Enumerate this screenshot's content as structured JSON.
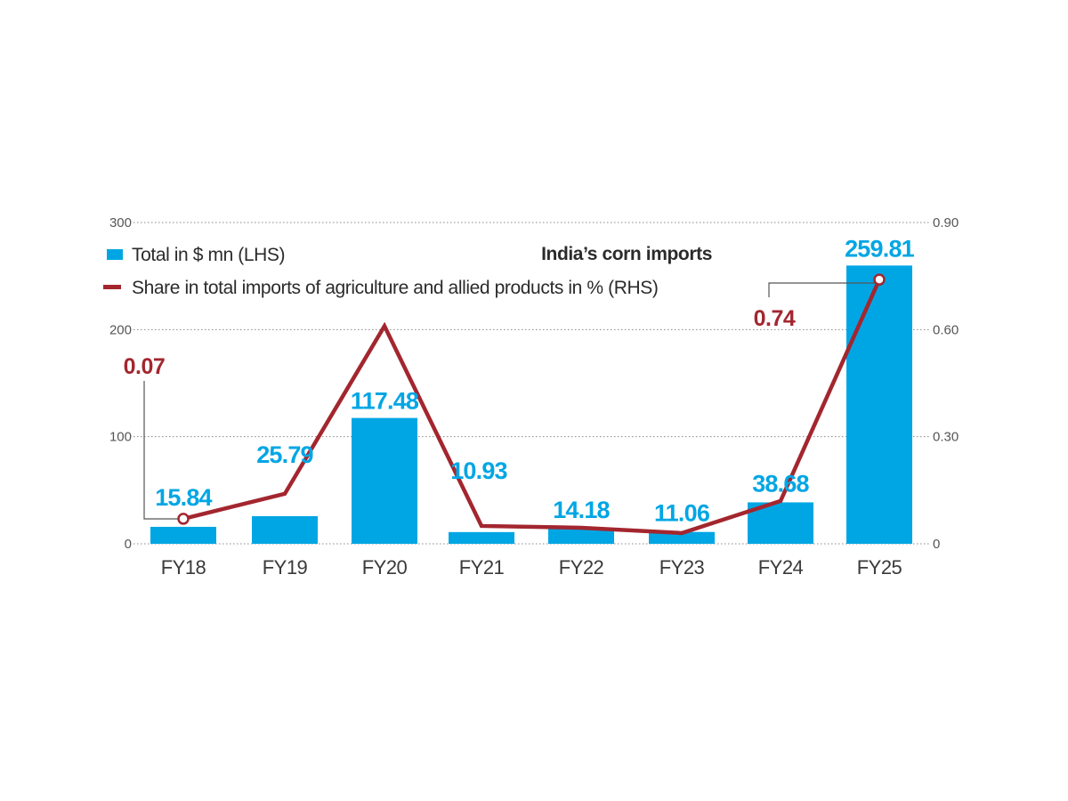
{
  "chart_data": {
    "type": "bar",
    "title": "India’s corn imports",
    "categories": [
      "FY18",
      "FY19",
      "FY20",
      "FY21",
      "FY22",
      "FY23",
      "FY24",
      "FY25"
    ],
    "series": [
      {
        "name": "Total in $ mn (LHS)",
        "type": "bar",
        "axis": "left",
        "color": "#00a6e4",
        "values": [
          15.84,
          25.79,
          117.48,
          10.93,
          14.18,
          11.06,
          38.68,
          259.81
        ],
        "labels": [
          "15.84",
          "25.79",
          "117.48",
          "10.93",
          "14.18",
          "11.06",
          "38.68",
          "259.81"
        ]
      },
      {
        "name": "Share in total imports of agriculture and allied products in % (RHS)",
        "type": "line",
        "axis": "right",
        "color": "#a3262f",
        "values": [
          0.07,
          0.14,
          0.61,
          0.05,
          0.045,
          0.03,
          0.12,
          0.74
        ],
        "annotations": [
          {
            "index": 0,
            "label": "0.07"
          },
          {
            "index": 7,
            "label": "0.74"
          }
        ]
      }
    ],
    "left_axis": {
      "range": [
        0,
        300
      ],
      "ticks": [
        "0",
        "100",
        "200",
        "300"
      ]
    },
    "right_axis": {
      "range": [
        0,
        0.9
      ],
      "ticks": [
        "0",
        "0.30",
        "0.60",
        "0.90"
      ]
    },
    "grid": "dotted horizontal",
    "legend_position": "top-left"
  }
}
